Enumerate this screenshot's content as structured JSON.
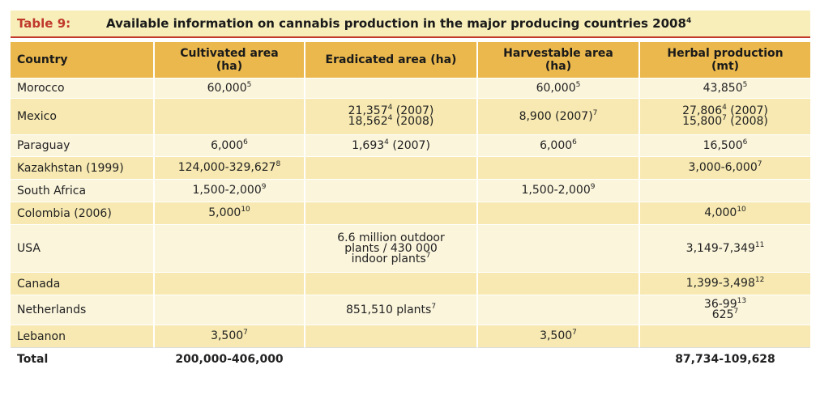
{
  "title": {
    "label": "Table 9:",
    "text": "Available information on cannabis production in the major producing countries 2008",
    "note": "4"
  },
  "headers": [
    {
      "l1": "Country",
      "l2": ""
    },
    {
      "l1": "Cultivated area",
      "l2": "(ha)"
    },
    {
      "l1": "Eradicated area (ha)",
      "l2": ""
    },
    {
      "l1": "Harvestable area",
      "l2": "(ha)"
    },
    {
      "l1": "Herbal production",
      "l2": "(mt)"
    }
  ],
  "rows": [
    {
      "country": "Morocco",
      "cultivated": [
        [
          "60,000",
          "5"
        ]
      ],
      "eradicated": [],
      "harvestable": [
        [
          "60,000",
          "5"
        ]
      ],
      "herbal": [
        [
          "43,850",
          "5"
        ]
      ]
    },
    {
      "country": "Mexico",
      "cultivated": [],
      "eradicated": [
        [
          "21,357",
          "4",
          " (2007)"
        ],
        [
          "18,562",
          "4",
          " (2008)"
        ]
      ],
      "harvestable": [
        [
          "8,900 (2007)",
          "7"
        ]
      ],
      "herbal": [
        [
          "27,806",
          "4",
          " (2007)"
        ],
        [
          "15,800",
          "7",
          " (2008)"
        ]
      ]
    },
    {
      "country": "Paraguay",
      "cultivated": [
        [
          "6,000",
          "6"
        ]
      ],
      "eradicated": [
        [
          "1,693",
          "4",
          " (2007)"
        ]
      ],
      "harvestable": [
        [
          "6,000",
          "6"
        ]
      ],
      "herbal": [
        [
          "16,500",
          "6"
        ]
      ]
    },
    {
      "country": "Kazakhstan (1999)",
      "cultivated": [
        [
          "124,000-329,627",
          "8"
        ]
      ],
      "eradicated": [],
      "harvestable": [],
      "herbal": [
        [
          "3,000-6,000",
          "7"
        ]
      ]
    },
    {
      "country": "South Africa",
      "cultivated": [
        [
          "1,500-2,000",
          "9"
        ]
      ],
      "eradicated": [],
      "harvestable": [
        [
          "1,500-2,000",
          "9"
        ]
      ],
      "herbal": []
    },
    {
      "country": "Colombia (2006)",
      "cultivated": [
        [
          "5,000",
          "10"
        ]
      ],
      "eradicated": [],
      "harvestable": [],
      "herbal": [
        [
          "4,000",
          "10"
        ]
      ]
    },
    {
      "country": "USA",
      "cultivated": [],
      "eradicated": [
        [
          "6.6 million outdoor"
        ],
        [
          "plants / 430 000"
        ],
        [
          "indoor plants",
          "7"
        ]
      ],
      "harvestable": [],
      "herbal": [
        [
          "3,149-7,349",
          "11"
        ]
      ]
    },
    {
      "country": "Canada",
      "cultivated": [],
      "eradicated": [],
      "harvestable": [],
      "herbal": [
        [
          "1,399-3,498",
          "12"
        ]
      ]
    },
    {
      "country": "Netherlands",
      "cultivated": [],
      "eradicated": [
        [
          "851,510 plants",
          "7"
        ]
      ],
      "harvestable": [],
      "herbal": [
        [
          "36-99",
          "13"
        ],
        [
          "625",
          "7"
        ]
      ]
    },
    {
      "country": "Lebanon",
      "cultivated": [
        [
          "3,500",
          "7"
        ]
      ],
      "eradicated": [],
      "harvestable": [
        [
          "3,500",
          "7"
        ]
      ],
      "herbal": []
    }
  ],
  "total": {
    "country": "Total",
    "cultivated": "200,000-406,000",
    "eradicated": "",
    "harvestable": "",
    "herbal": "87,734-109,628"
  },
  "colors": {
    "header_bg": "#eab84d",
    "row_light": "#fbf5dc",
    "row_dark": "#f7e9b1",
    "title_bg": "#f7eeb9",
    "accent_red": "#c0392b"
  }
}
